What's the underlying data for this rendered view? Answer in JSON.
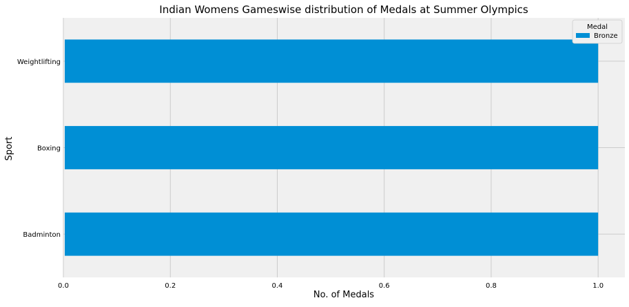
{
  "chart_data": {
    "type": "bar",
    "orientation": "horizontal",
    "title": "Indian Womens Gameswise distribution of Medals at Summer Olympics",
    "xlabel": "No. of Medals",
    "ylabel": "Sport",
    "categories": [
      "Badminton",
      "Boxing",
      "Weightlifting"
    ],
    "series": [
      {
        "name": "Bronze",
        "values": [
          1,
          1,
          1
        ],
        "color": "#008fd5"
      }
    ],
    "xlim": [
      0,
      1.05
    ],
    "xticks": [
      0.0,
      0.2,
      0.4,
      0.6,
      0.8,
      1.0
    ],
    "xtick_labels": [
      "0.0",
      "0.2",
      "0.4",
      "0.6",
      "0.8",
      "1.0"
    ],
    "grid": true,
    "legend": {
      "title": "Medal",
      "position": "top-right"
    },
    "colors": {
      "plot_bg": "#f0f0f0",
      "grid": "#cbcbcb",
      "bar": "#008fd5",
      "text": "#000000"
    }
  }
}
